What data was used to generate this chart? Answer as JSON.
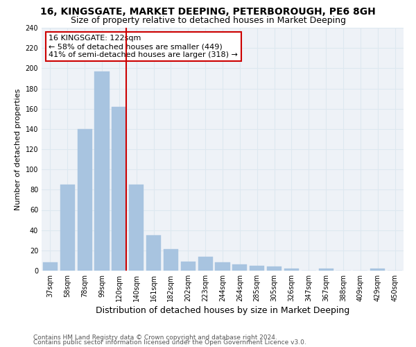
{
  "title": "16, KINGSGATE, MARKET DEEPING, PETERBOROUGH, PE6 8GH",
  "subtitle": "Size of property relative to detached houses in Market Deeping",
  "xlabel": "Distribution of detached houses by size in Market Deeping",
  "ylabel": "Number of detached properties",
  "categories": [
    "37sqm",
    "58sqm",
    "78sqm",
    "99sqm",
    "120sqm",
    "140sqm",
    "161sqm",
    "182sqm",
    "202sqm",
    "223sqm",
    "244sqm",
    "264sqm",
    "285sqm",
    "305sqm",
    "326sqm",
    "347sqm",
    "367sqm",
    "388sqm",
    "409sqm",
    "429sqm",
    "450sqm"
  ],
  "values": [
    8,
    85,
    140,
    197,
    162,
    85,
    35,
    21,
    9,
    14,
    8,
    6,
    5,
    4,
    2,
    0,
    2,
    0,
    0,
    2,
    0
  ],
  "bar_color": "#a8c4e0",
  "bar_edgecolor": "#a8c4e0",
  "vline_color": "#cc0000",
  "annotation_text": "16 KINGSGATE: 122sqm\n← 58% of detached houses are smaller (449)\n41% of semi-detached houses are larger (318) →",
  "annotation_box_edgecolor": "#cc0000",
  "annotation_box_facecolor": "#ffffff",
  "ylim": [
    0,
    240
  ],
  "yticks": [
    0,
    20,
    40,
    60,
    80,
    100,
    120,
    140,
    160,
    180,
    200,
    220,
    240
  ],
  "grid_color": "#dde8f0",
  "background_color": "#eef2f7",
  "footnote1": "Contains HM Land Registry data © Crown copyright and database right 2024.",
  "footnote2": "Contains public sector information licensed under the Open Government Licence v3.0.",
  "title_fontsize": 10,
  "subtitle_fontsize": 9,
  "xlabel_fontsize": 9,
  "ylabel_fontsize": 8,
  "tick_fontsize": 7,
  "annotation_fontsize": 8,
  "footnote_fontsize": 6.5
}
